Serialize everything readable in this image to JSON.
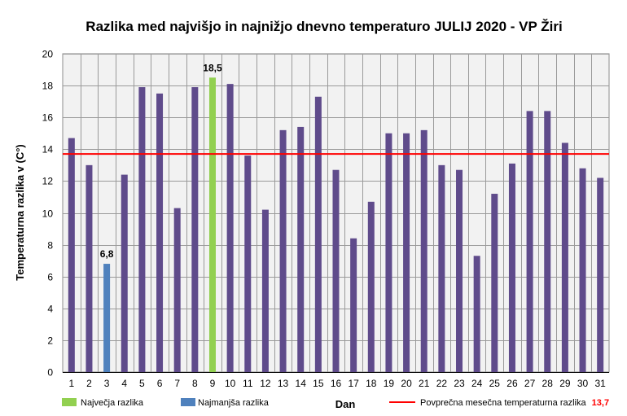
{
  "chart_data": {
    "type": "bar",
    "title": "Razlika med najvišjo in najnižjo dnevno temperaturo JULIJ 2020 - VP Žiri",
    "xlabel": "Dan",
    "ylabel": "Temperaturna razlika v (C°)",
    "ylim": [
      0,
      20
    ],
    "ytick_step": 2,
    "grid": true,
    "categories": [
      "1",
      "2",
      "3",
      "4",
      "5",
      "6",
      "7",
      "8",
      "9",
      "10",
      "11",
      "12",
      "13",
      "14",
      "15",
      "16",
      "17",
      "18",
      "19",
      "20",
      "21",
      "22",
      "23",
      "24",
      "25",
      "26",
      "27",
      "28",
      "29",
      "30",
      "31"
    ],
    "values": [
      14.7,
      13.0,
      6.8,
      12.4,
      17.9,
      17.5,
      10.3,
      17.9,
      18.5,
      18.1,
      13.6,
      10.2,
      15.2,
      15.4,
      17.3,
      12.7,
      8.4,
      10.7,
      15.0,
      15.0,
      15.2,
      13.0,
      12.7,
      7.3,
      11.2,
      13.1,
      16.4,
      16.4,
      14.4,
      12.8,
      12.2
    ],
    "max_index": 8,
    "min_index": 2,
    "max_label": "18,5",
    "min_label": "6,8",
    "average": 13.7,
    "average_label_value": "13,7",
    "colors": {
      "bar": "#5f4b8b",
      "max": "#92d050",
      "min": "#4f81bd",
      "average": "#ff0000",
      "plot_bg": "#f2f2f2",
      "grid": "#9a9a9a"
    },
    "legend": {
      "max_text": "Največja razlika",
      "min_text": "Najmanjša razlika",
      "average_text": "Povprečna mesečna temperaturna razlika"
    }
  }
}
